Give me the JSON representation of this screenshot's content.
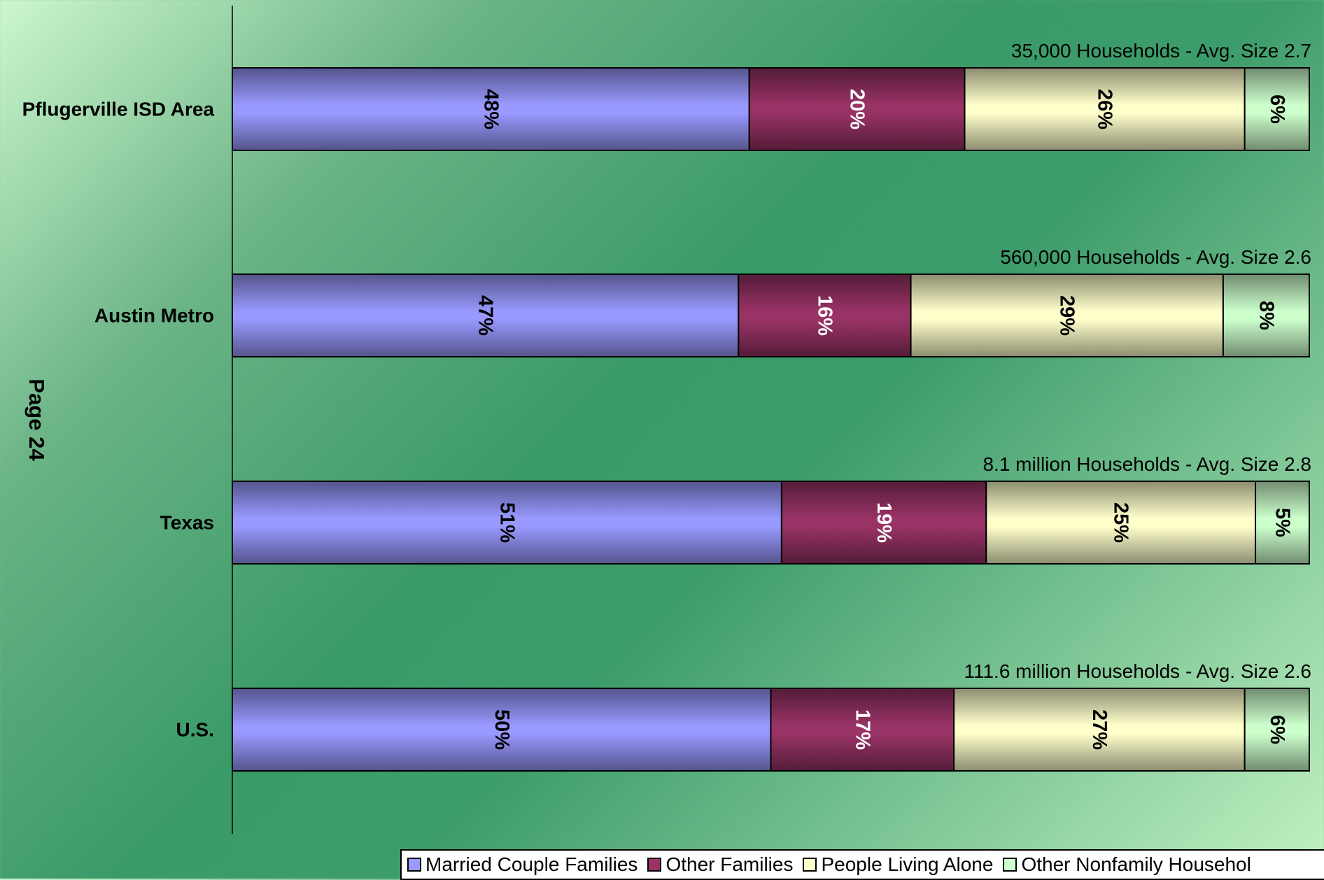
{
  "page_label": "Page 24",
  "chart_data": {
    "type": "bar",
    "orientation": "horizontal",
    "stacked": true,
    "normalized": true,
    "categories": [
      "Pflugerville ISD Area",
      "Austin Metro",
      "Texas",
      "U.S."
    ],
    "bar_annotations": [
      "35,000 Households - Avg. Size 2.7",
      "560,000 Households - Avg. Size 2.6",
      "8.1 million Households - Avg. Size 2.8",
      "111.6 million Households - Avg. Size 2.6"
    ],
    "series": [
      {
        "name": "Married Couple Families",
        "color": "#9999ff",
        "label_color": "#000000",
        "values": [
          48,
          47,
          51,
          50
        ]
      },
      {
        "name": "Other Families",
        "color": "#993366",
        "label_color": "#ffffff",
        "values": [
          20,
          16,
          19,
          17
        ]
      },
      {
        "name": "People Living Alone",
        "color": "#ffffcc",
        "label_color": "#000000",
        "values": [
          26,
          29,
          25,
          27
        ]
      },
      {
        "name": "Other Nonfamily Households",
        "color": "#ccffcc",
        "label_color": "#000000",
        "values": [
          6,
          8,
          5,
          6
        ]
      }
    ],
    "data_labels": [
      [
        "48%",
        "20%",
        "26%",
        "6%"
      ],
      [
        "47%",
        "16%",
        "29%",
        "8%"
      ],
      [
        "51%",
        "19%",
        "25%",
        "5%"
      ],
      [
        "50%",
        "17%",
        "27%",
        "6%"
      ]
    ],
    "legend": {
      "position": "bottom",
      "entries": [
        "Married Couple Families",
        "Other Families",
        "People Living Alone",
        "Other Nonfamily Househol"
      ]
    },
    "grid": false
  }
}
